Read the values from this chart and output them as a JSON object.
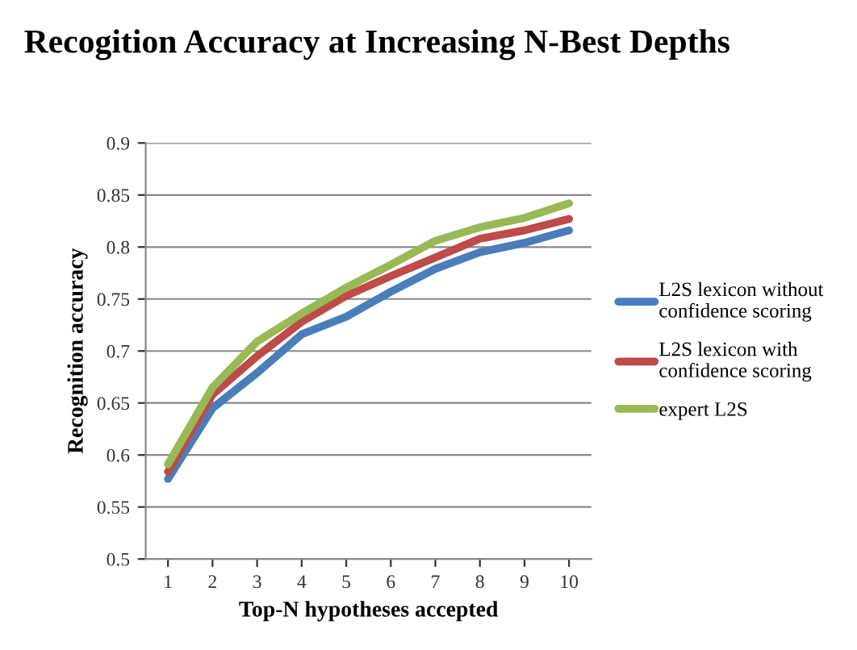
{
  "chart_data": {
    "type": "line",
    "title": "Recogition Accuracy at Increasing N-Best Depths",
    "xlabel": "Top-N hypotheses accepted",
    "ylabel": "Recognition accuracy",
    "categories": [
      "1",
      "2",
      "3",
      "4",
      "5",
      "6",
      "7",
      "8",
      "9",
      "10"
    ],
    "series": [
      {
        "name": "L2S lexicon without confidence scoring",
        "color": "#4a7ebb",
        "values": [
          0.577,
          0.645,
          0.679,
          0.716,
          0.733,
          0.757,
          0.779,
          0.795,
          0.804,
          0.816
        ]
      },
      {
        "name": "L2S lexicon with confidence scoring",
        "color": "#be4b48",
        "values": [
          0.584,
          0.658,
          0.695,
          0.728,
          0.753,
          0.772,
          0.79,
          0.808,
          0.816,
          0.827
        ]
      },
      {
        "name": "expert L2S",
        "color": "#98b954",
        "values": [
          0.591,
          0.665,
          0.709,
          0.736,
          0.761,
          0.783,
          0.806,
          0.819,
          0.828,
          0.842
        ]
      }
    ],
    "ylim": [
      0.5,
      0.9
    ],
    "yticks": [
      0.5,
      0.55,
      0.6,
      0.65,
      0.7,
      0.75,
      0.8,
      0.85,
      0.9
    ],
    "grid": "y",
    "legend": "right",
    "marker": "none",
    "line_style": "solid"
  }
}
